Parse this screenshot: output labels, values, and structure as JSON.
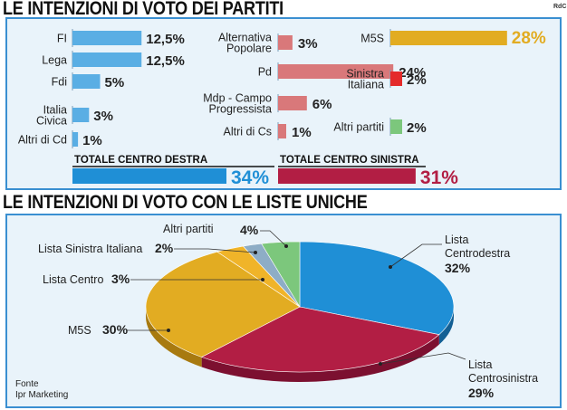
{
  "header": {
    "title1": "LE INTENZIONI DI VOTO DEI PARTITI",
    "title2": "LE INTENZIONI DI VOTO CON LE LISTE UNICHE",
    "corner": "RdC"
  },
  "source": {
    "line1": "Fonte",
    "line2": "Ipr Marketing"
  },
  "colors": {
    "centrodestra": "#5aaee4",
    "centrosinistra": "#d9787a",
    "m5s": "#e2ac22",
    "sinistra": "#e42a2a",
    "altri": "#7cc77c",
    "total_cd": "#1f8fd6",
    "total_cs": "#b21e44",
    "accent": "#3a8fd1"
  },
  "chart_data": [
    {
      "type": "bar",
      "title": "LE INTENZIONI DI VOTO DEI PARTITI",
      "groups": [
        {
          "name": "centro destra",
          "categories": [
            "FI",
            "Lega",
            "Fdi",
            "Italia Civica",
            "Altri di Cd"
          ],
          "values": [
            12.5,
            12.5,
            5,
            3,
            1
          ],
          "labels": [
            "12,5%",
            "12,5%",
            "5%",
            "3%",
            "1%"
          ],
          "total_label": "TOTALE CENTRO DESTRA",
          "total": 34,
          "total_text": "34%"
        },
        {
          "name": "centro sinistra",
          "categories": [
            "Alternativa Popolare",
            "Pd",
            "Mdp - Campo Progressista",
            "Altri di Cs"
          ],
          "values": [
            3,
            24,
            6,
            1
          ],
          "labels": [
            "3%",
            "24%",
            "6%",
            "1%"
          ],
          "total_label": "TOTALE CENTRO SINISTRA",
          "total": 31,
          "total_text": "31%"
        },
        {
          "name": "altri",
          "categories": [
            "M5S",
            "Sinistra Italiana",
            "Altri partiti"
          ],
          "values": [
            28,
            2,
            2
          ],
          "labels": [
            "28%",
            "2%",
            "2%"
          ]
        }
      ]
    },
    {
      "type": "pie",
      "title": "LE INTENZIONI DI VOTO CON LE LISTE UNICHE",
      "categories": [
        "Lista Centrodestra",
        "Lista Centrosinistra",
        "M5S",
        "Lista Centro",
        "Lista Sinistra Italiana",
        "Altri partiti"
      ],
      "values": [
        32,
        29,
        30,
        3,
        2,
        4
      ],
      "labels": [
        "32%",
        "29%",
        "30%",
        "3%",
        "2%",
        "4%"
      ]
    }
  ]
}
